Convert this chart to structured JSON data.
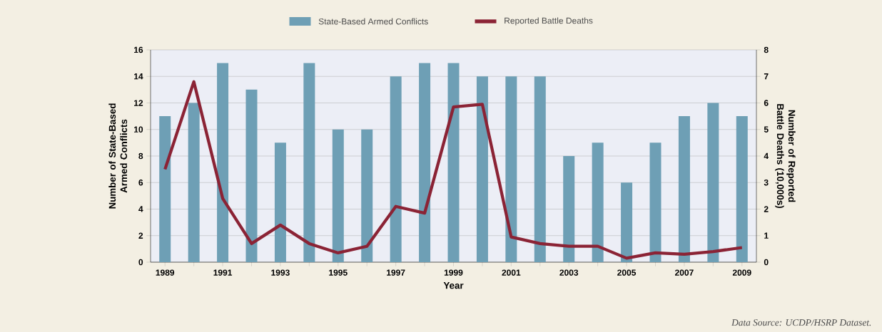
{
  "chart_data": {
    "type": "bar",
    "xlabel": "Year",
    "ylabel": "Number of State-Based Armed Conflicts",
    "y2label": "Number of Reported Battle Deaths (10,000s)",
    "categories": [
      "1989",
      null,
      "1991",
      null,
      "1993",
      null,
      "1995",
      null,
      "1997",
      null,
      "1999",
      null,
      "2001",
      null,
      "2003",
      null,
      "2005",
      null,
      "2007",
      null,
      "2009"
    ],
    "series": [
      {
        "name": "State-Based Armed Conflicts",
        "color": "#6e9fb5",
        "values": [
          11,
          12,
          15,
          13,
          9,
          15,
          10,
          10,
          14,
          15,
          15,
          14,
          14,
          14,
          8,
          9,
          6,
          9,
          11,
          12,
          11
        ]
      },
      {
        "name": "Reported Battle Deaths",
        "type": "line",
        "axis": "y2",
        "color": "#8b2335",
        "values": [
          3.5,
          6.8,
          2.4,
          0.7,
          1.4,
          0.7,
          0.35,
          0.6,
          2.1,
          1.85,
          5.85,
          5.95,
          0.95,
          0.7,
          0.6,
          0.6,
          0.15,
          0.35,
          0.3,
          0.4,
          0.55
        ]
      }
    ],
    "ylim": [
      0,
      16
    ],
    "yticks": [
      0,
      2,
      4,
      6,
      8,
      10,
      12,
      14,
      16
    ],
    "y2lim": [
      0,
      8
    ],
    "y2ticks": [
      0,
      1,
      2,
      3,
      4,
      5,
      6,
      7,
      8
    ],
    "grid": "y",
    "legend": "top",
    "marker": "none",
    "annotations": [
      "Data Source: UCDP/HSRP Dataset."
    ]
  }
}
